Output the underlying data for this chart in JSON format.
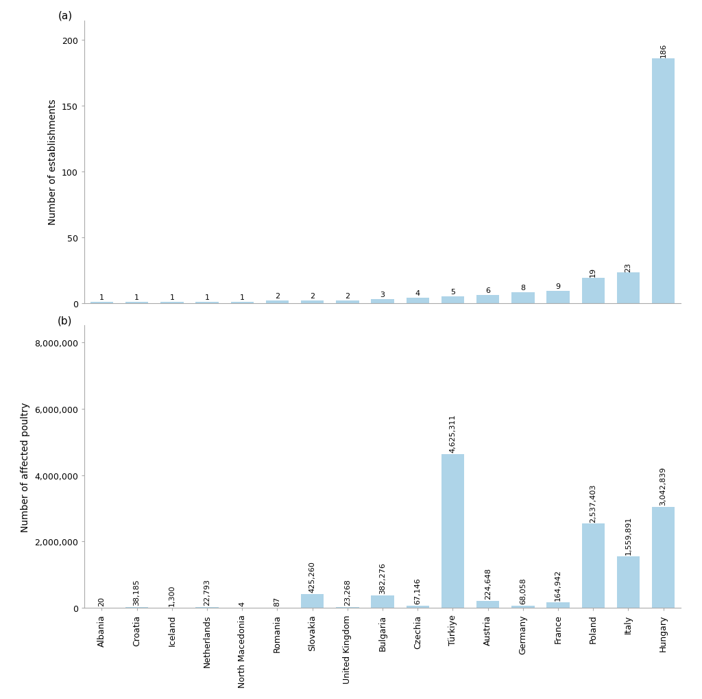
{
  "countries": [
    "Albania",
    "Croatia",
    "Iceland",
    "Netherlands",
    "North Macedonia",
    "Romania",
    "Slovakia",
    "United Kingdom",
    "Bulgaria",
    "Czechia",
    "Türkiye",
    "Austria",
    "Germany",
    "France",
    "Poland",
    "Italy",
    "Hungary"
  ],
  "establishments": [
    1,
    1,
    1,
    1,
    1,
    2,
    2,
    2,
    3,
    4,
    5,
    6,
    8,
    9,
    19,
    23,
    186
  ],
  "poultry": [
    20,
    38185,
    1300,
    22793,
    4,
    87,
    425260,
    23268,
    382276,
    67146,
    4625311,
    224648,
    68058,
    164942,
    2537403,
    1559891,
    3042839
  ],
  "poultry_labels": [
    "20",
    "38,185",
    "1,300",
    "22,793",
    "4",
    "87",
    "425,260",
    "23,268",
    "382,276",
    "67,146",
    "4,625,311",
    "224,648",
    "68,058",
    "164,942",
    "2,537,403",
    "1,559,891",
    "3,042,839"
  ],
  "bar_color": "#aed4e8",
  "background_color": "#ffffff",
  "ylabel_a": "Number of establishments",
  "ylabel_b": "Number of affected poultry",
  "label_a": "(a)",
  "label_b": "(b)",
  "ylim_a": [
    0,
    215
  ],
  "ylim_b": [
    0,
    8500000
  ],
  "yticks_a": [
    0,
    50,
    100,
    150,
    200
  ],
  "yticks_b": [
    0,
    2000000,
    4000000,
    6000000,
    8000000
  ],
  "ytick_labels_b": [
    "0",
    "2,000,000",
    "4,000,000",
    "6,000,000",
    "8,000,000"
  ],
  "spine_color": "#aaaaaa",
  "text_color": "#000000",
  "fontsize_tick": 9,
  "fontsize_label": 10,
  "fontsize_bar_label": 8,
  "fontsize_panel_label": 11,
  "bar_width": 0.65
}
